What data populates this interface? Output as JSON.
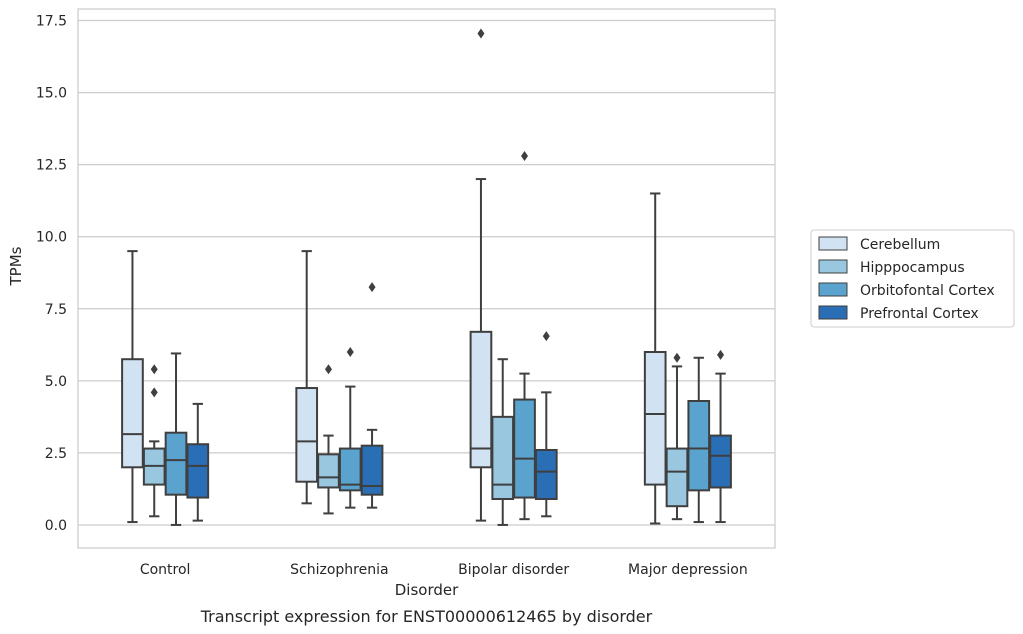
{
  "chart_data": {
    "type": "box",
    "title": "",
    "caption": "Transcript expression for ENST00000612465 by disorder",
    "xlabel": "Disorder",
    "ylabel": "TPMs",
    "ylim": [
      -0.8,
      17.9
    ],
    "yticks": [
      0.0,
      2.5,
      5.0,
      7.5,
      10.0,
      12.5,
      15.0,
      17.5
    ],
    "ytick_labels": [
      "0.0",
      "2.5",
      "5.0",
      "7.5",
      "10.0",
      "12.5",
      "15.0",
      "17.5"
    ],
    "grid": "horizontal",
    "legend_position": "right",
    "categories": [
      "Control",
      "Schizophrenia",
      "Bipolar disorder",
      "Major depression"
    ],
    "series": [
      {
        "name": "Cerebellum",
        "color": "#d1e2f2",
        "boxes": [
          {
            "whislo": 0.1,
            "q1": 2.0,
            "median": 3.15,
            "q3": 5.75,
            "whishi": 9.5,
            "fliers": []
          },
          {
            "whislo": 0.75,
            "q1": 1.5,
            "median": 2.9,
            "q3": 4.75,
            "whishi": 9.5,
            "fliers": []
          },
          {
            "whislo": 0.15,
            "q1": 2.0,
            "median": 2.65,
            "q3": 6.7,
            "whishi": 12.0,
            "fliers": [
              17.05
            ]
          },
          {
            "whislo": 0.05,
            "q1": 1.4,
            "median": 3.85,
            "q3": 6.0,
            "whishi": 11.5,
            "fliers": []
          }
        ]
      },
      {
        "name": "Hipppocampus",
        "color": "#9ac7e0",
        "boxes": [
          {
            "whislo": 0.3,
            "q1": 1.4,
            "median": 2.05,
            "q3": 2.65,
            "whishi": 2.9,
            "fliers": [
              4.6,
              5.4
            ]
          },
          {
            "whislo": 0.4,
            "q1": 1.3,
            "median": 1.65,
            "q3": 2.45,
            "whishi": 3.1,
            "fliers": [
              5.4
            ]
          },
          {
            "whislo": 0.0,
            "q1": 0.9,
            "median": 1.4,
            "q3": 3.75,
            "whishi": 5.75,
            "fliers": []
          },
          {
            "whislo": 0.2,
            "q1": 0.65,
            "median": 1.85,
            "q3": 2.65,
            "whishi": 5.5,
            "fliers": [
              5.8
            ]
          }
        ]
      },
      {
        "name": "Orbitofontal Cortex",
        "color": "#5ba3cf",
        "boxes": [
          {
            "whislo": 0.0,
            "q1": 1.05,
            "median": 2.25,
            "q3": 3.2,
            "whishi": 5.95,
            "fliers": []
          },
          {
            "whislo": 0.6,
            "q1": 1.2,
            "median": 1.4,
            "q3": 2.65,
            "whishi": 4.8,
            "fliers": [
              6.0
            ]
          },
          {
            "whislo": 0.2,
            "q1": 0.95,
            "median": 2.3,
            "q3": 4.35,
            "whishi": 5.25,
            "fliers": [
              12.8
            ]
          },
          {
            "whislo": 0.1,
            "q1": 1.2,
            "median": 2.65,
            "q3": 4.3,
            "whishi": 5.8,
            "fliers": []
          }
        ]
      },
      {
        "name": "Prefrontal Cortex",
        "color": "#2a6fb5",
        "boxes": [
          {
            "whislo": 0.15,
            "q1": 0.95,
            "median": 2.05,
            "q3": 2.8,
            "whishi": 4.2,
            "fliers": []
          },
          {
            "whislo": 0.6,
            "q1": 1.05,
            "median": 1.35,
            "q3": 2.75,
            "whishi": 3.3,
            "fliers": [
              8.25
            ]
          },
          {
            "whislo": 0.3,
            "q1": 0.9,
            "median": 1.85,
            "q3": 2.6,
            "whishi": 4.6,
            "fliers": [
              6.55
            ]
          },
          {
            "whislo": 0.1,
            "q1": 1.3,
            "median": 2.4,
            "q3": 3.1,
            "whishi": 5.25,
            "fliers": [
              5.9
            ]
          }
        ]
      }
    ]
  }
}
